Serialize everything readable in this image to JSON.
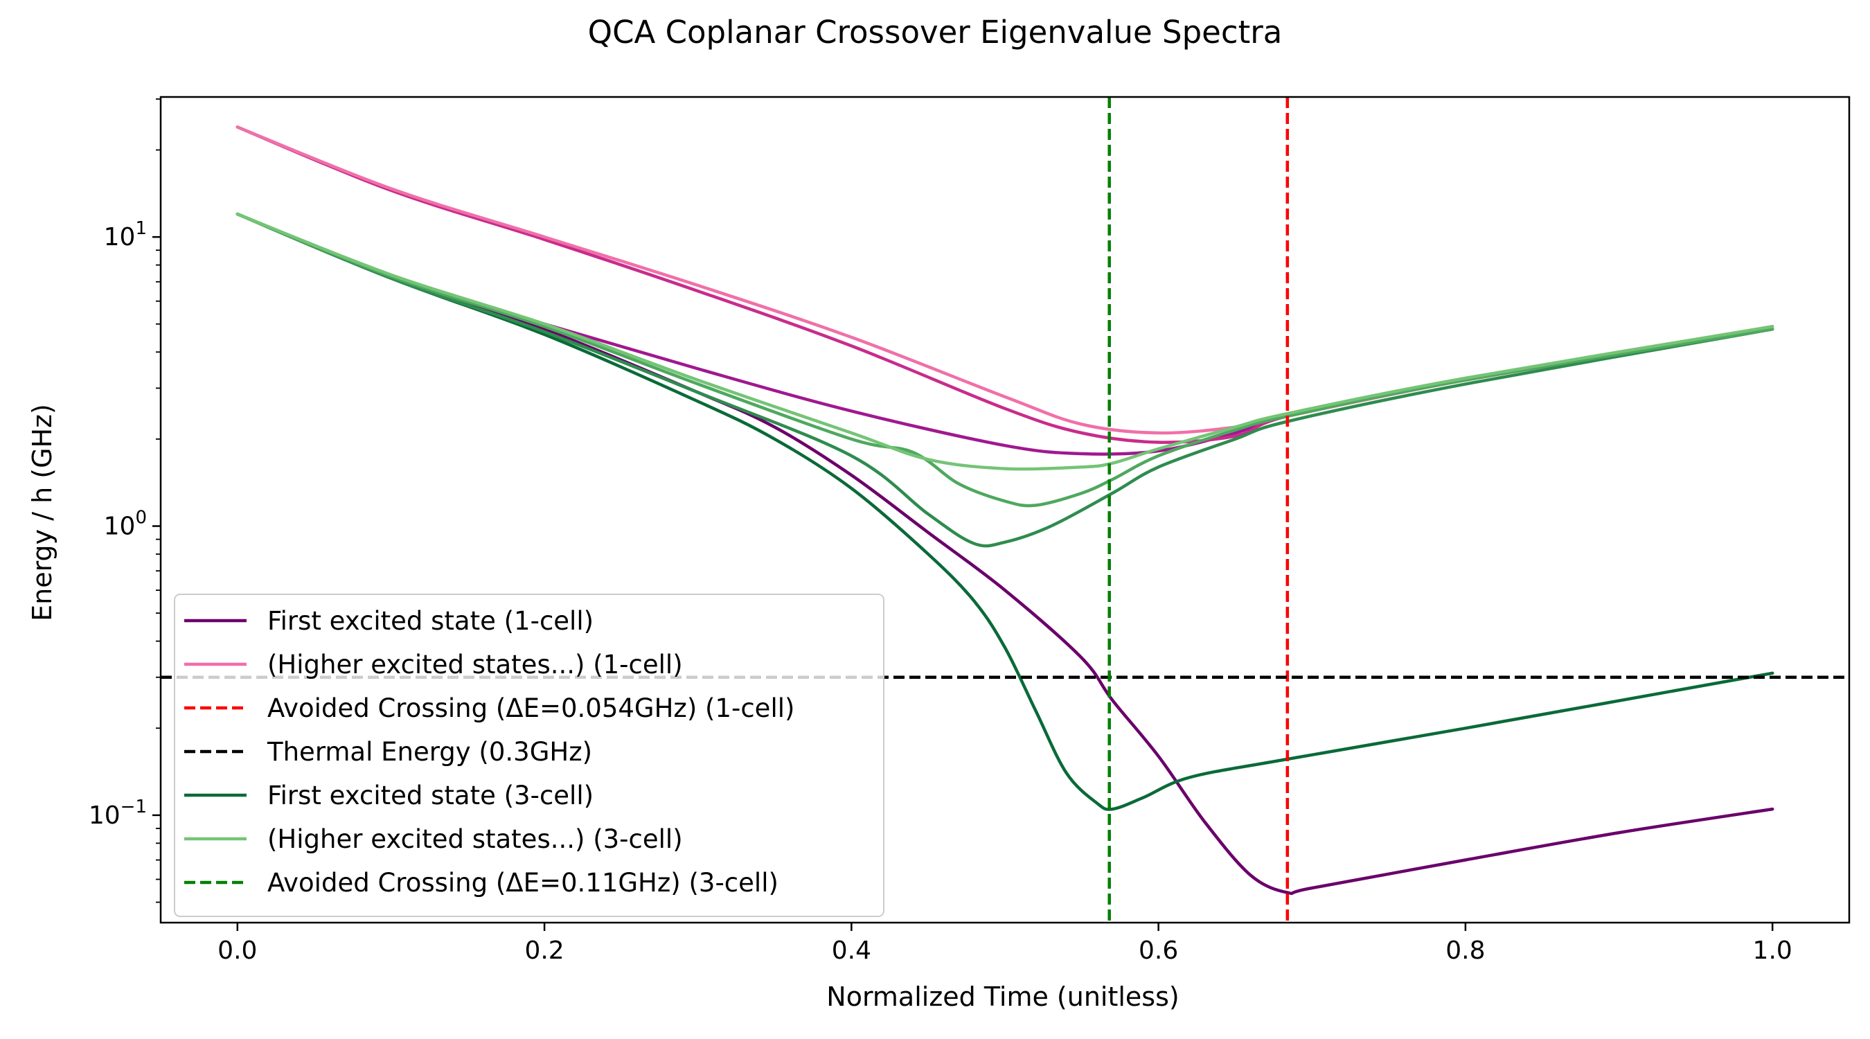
{
  "chart_data": {
    "type": "line",
    "title": "QCA Coplanar Crossover Eigenvalue Spectra",
    "xlabel": "Normalized Time (unitless)",
    "ylabel": "Energy / h (GHz)",
    "xlim": [
      -0.05,
      1.05
    ],
    "ylim": [
      0.0425,
      30.5
    ],
    "yscale": "log",
    "grid": false,
    "legend_position": "lower-left",
    "x_ticks": [
      0.0,
      0.2,
      0.4,
      0.6,
      0.8,
      1.0
    ],
    "x_tick_labels": [
      "0.0",
      "0.2",
      "0.4",
      "0.6",
      "0.8",
      "1.0"
    ],
    "y_ticks": [
      0.1,
      1,
      10
    ],
    "y_tick_labels": [
      {
        "base": "10",
        "exp": "−1"
      },
      {
        "base": "10",
        "exp": "0"
      },
      {
        "base": "10",
        "exp": "1"
      }
    ],
    "series": [
      {
        "name": "First excited state (1-cell)",
        "style": "solid",
        "color": "#6a006a",
        "in_legend": true,
        "x": [
          0,
          0.1,
          0.2,
          0.3,
          0.35,
          0.4,
          0.45,
          0.5,
          0.55,
          0.57,
          0.6,
          0.63,
          0.66,
          0.684,
          0.7,
          0.8,
          0.9,
          1.0
        ],
        "y": [
          12,
          7.3,
          4.8,
          2.9,
          2.2,
          1.5,
          0.95,
          0.6,
          0.35,
          0.25,
          0.16,
          0.095,
          0.062,
          0.054,
          0.056,
          0.07,
          0.087,
          0.105
        ]
      },
      {
        "name": "",
        "style": "solid",
        "color": "#a01890",
        "in_legend": false,
        "x": [
          0,
          0.1,
          0.2,
          0.3,
          0.4,
          0.5,
          0.55,
          0.6,
          0.65,
          0.684,
          0.8,
          1.0
        ],
        "y": [
          12,
          7.3,
          5.0,
          3.5,
          2.5,
          1.9,
          1.78,
          1.82,
          2.1,
          2.4,
          3.2,
          4.8
        ]
      },
      {
        "name": "",
        "style": "solid",
        "color": "#c82c8c",
        "in_legend": false,
        "x": [
          0,
          0.1,
          0.2,
          0.3,
          0.4,
          0.5,
          0.55,
          0.6,
          0.65,
          0.684,
          0.8,
          1.0
        ],
        "y": [
          24,
          14.5,
          9.8,
          6.5,
          4.2,
          2.55,
          2.1,
          1.95,
          2.05,
          2.4,
          3.2,
          4.8
        ]
      },
      {
        "name": "(Higher excited states...) (1-cell)",
        "style": "solid",
        "color": "#f070a8",
        "in_legend": true,
        "x": [
          0,
          0.1,
          0.2,
          0.3,
          0.4,
          0.5,
          0.55,
          0.6,
          0.65,
          0.684,
          0.8,
          1.0
        ],
        "y": [
          24,
          14.7,
          10.0,
          6.8,
          4.5,
          2.8,
          2.25,
          2.1,
          2.2,
          2.4,
          3.2,
          4.9
        ]
      },
      {
        "name": "First excited state (3-cell)",
        "style": "solid",
        "color": "#0a6a38",
        "in_legend": true,
        "x": [
          0,
          0.1,
          0.2,
          0.3,
          0.35,
          0.4,
          0.45,
          0.48,
          0.5,
          0.52,
          0.54,
          0.56,
          0.57,
          0.59,
          0.62,
          0.68,
          0.8,
          1.0
        ],
        "y": [
          12,
          7.2,
          4.6,
          2.7,
          2.0,
          1.35,
          0.8,
          0.55,
          0.38,
          0.23,
          0.14,
          0.11,
          0.105,
          0.115,
          0.135,
          0.155,
          0.2,
          0.31
        ]
      },
      {
        "name": "",
        "style": "solid",
        "color": "#2e8c4e",
        "in_legend": false,
        "x": [
          0,
          0.1,
          0.2,
          0.3,
          0.4,
          0.45,
          0.48,
          0.5,
          0.53,
          0.57,
          0.6,
          0.65,
          0.684,
          0.8,
          1.0
        ],
        "y": [
          12,
          7.2,
          4.7,
          2.9,
          1.75,
          1.1,
          0.87,
          0.88,
          1.0,
          1.3,
          1.6,
          2.0,
          2.3,
          3.1,
          4.8
        ]
      },
      {
        "name": "",
        "style": "solid",
        "color": "#4ea85e",
        "in_legend": false,
        "x": [
          0,
          0.1,
          0.2,
          0.3,
          0.4,
          0.44,
          0.47,
          0.5,
          0.52,
          0.55,
          0.57,
          0.6,
          0.65,
          0.684,
          0.8,
          1.0
        ],
        "y": [
          12,
          7.3,
          4.9,
          3.1,
          2.0,
          1.8,
          1.4,
          1.22,
          1.18,
          1.3,
          1.45,
          1.75,
          2.15,
          2.4,
          3.2,
          4.8
        ]
      },
      {
        "name": "(Higher excited states...) (3-cell)",
        "style": "solid",
        "color": "#74c476",
        "in_legend": true,
        "x": [
          0,
          0.1,
          0.2,
          0.3,
          0.4,
          0.45,
          0.5,
          0.55,
          0.57,
          0.6,
          0.65,
          0.684,
          0.8,
          1.0
        ],
        "y": [
          12,
          7.4,
          5.0,
          3.2,
          2.1,
          1.7,
          1.58,
          1.6,
          1.65,
          1.85,
          2.2,
          2.45,
          3.25,
          4.9
        ]
      }
    ],
    "reference_lines": [
      {
        "name": "Avoided Crossing (ΔE=0.054GHz)  (1-cell)",
        "orientation": "vertical",
        "x": 0.684,
        "style": "dashed",
        "color": "#ff0000"
      },
      {
        "name": "Thermal Energy (0.3GHz)",
        "orientation": "horizontal",
        "y": 0.3,
        "style": "dashed",
        "color": "#000000"
      },
      {
        "name": "Avoided Crossing (ΔE=0.11GHz)  (3-cell)",
        "orientation": "vertical",
        "x": 0.568,
        "style": "dashed",
        "color": "#008000"
      }
    ],
    "legend": [
      {
        "label": "First excited state (1-cell)",
        "color": "#6a006a",
        "style": "solid"
      },
      {
        "label": "(Higher excited states...) (1-cell)",
        "color": "#f070a8",
        "style": "solid"
      },
      {
        "label": "Avoided Crossing (ΔE=0.054GHz)  (1-cell)",
        "color": "#ff0000",
        "style": "dashed"
      },
      {
        "label": "Thermal Energy (0.3GHz)",
        "color": "#000000",
        "style": "dashed"
      },
      {
        "label": "First excited state (3-cell)",
        "color": "#0a6a38",
        "style": "solid"
      },
      {
        "label": "(Higher excited states...) (3-cell)",
        "color": "#74c476",
        "style": "solid"
      },
      {
        "label": "Avoided Crossing (ΔE=0.11GHz)  (3-cell)",
        "color": "#008000",
        "style": "dashed"
      }
    ]
  }
}
